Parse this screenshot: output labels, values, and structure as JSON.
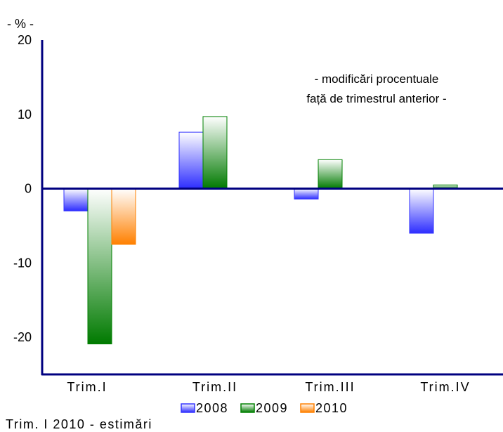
{
  "chart_data": {
    "type": "bar",
    "unit_label": "- % -",
    "annotation_lines": [
      "- modificări procentuale",
      "față de trimestrul anterior -"
    ],
    "categories": [
      "Trim.I",
      "Trim.II",
      "Trim.III",
      "Trim.IV"
    ],
    "series": [
      {
        "name": "2008",
        "values": [
          -3.0,
          7.6,
          -1.4,
          -6.0
        ],
        "color": "#3333ff"
      },
      {
        "name": "2009",
        "values": [
          -20.9,
          9.7,
          3.9,
          0.5
        ],
        "color": "#008000"
      },
      {
        "name": "2010",
        "values": [
          -7.5,
          null,
          null,
          null
        ],
        "color": "#ff8000"
      }
    ],
    "ylim": [
      -25,
      20
    ],
    "yticks": [
      "20",
      "10",
      "0",
      "-10",
      "-20"
    ],
    "grid": false,
    "legend_position": "bottom",
    "footnote": "Trim. I 2010 - estimări"
  }
}
